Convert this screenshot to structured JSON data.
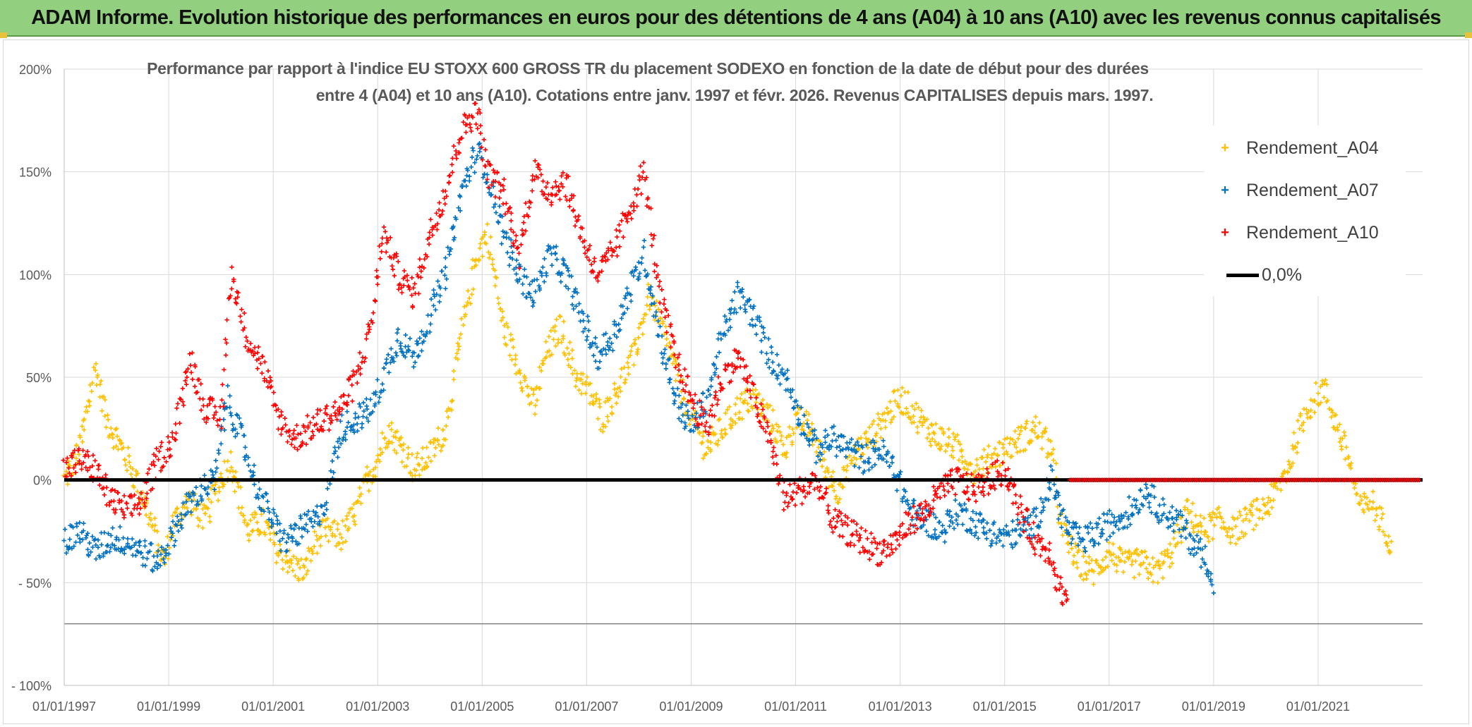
{
  "banner": {
    "title": "ADAM Informe. Evolution historique des performances en euros pour des détentions de 4 ans (A04) à 10 ans (A10) avec les revenus connus capitalisés"
  },
  "chart_data": {
    "type": "scatter",
    "title_line1": "Performance par rapport à l'indice EU STOXX 600 GROSS TR  du placement SODEXO en fonction de la date de début pour des durées",
    "title_line2": "entre 4 (A04) et 10 ans (A10). Cotations entre janv. 1997 et févr. 2026. Revenus CAPITALISES depuis mars. 1997.",
    "xlabel": "",
    "ylabel": "",
    "x_range": [
      1997.0,
      2023.0
    ],
    "ylim": [
      -100,
      200
    ],
    "grid": true,
    "legend_position": "top-right",
    "y_ticks": [
      {
        "value": 200,
        "label": "200%"
      },
      {
        "value": 150,
        "label": "150%"
      },
      {
        "value": 100,
        "label": "100%"
      },
      {
        "value": 50,
        "label": "50%"
      },
      {
        "value": 0,
        "label": "0%"
      },
      {
        "value": -50,
        "label": "- 50%"
      },
      {
        "value": -100,
        "label": "- 100%"
      }
    ],
    "x_ticks": [
      {
        "value": 1997,
        "label": "01/01/1997"
      },
      {
        "value": 1999,
        "label": "01/01/1999"
      },
      {
        "value": 2001,
        "label": "01/01/2001"
      },
      {
        "value": 2003,
        "label": "01/01/2003"
      },
      {
        "value": 2005,
        "label": "01/01/2005"
      },
      {
        "value": 2007,
        "label": "01/01/2007"
      },
      {
        "value": 2009,
        "label": "01/01/2009"
      },
      {
        "value": 2011,
        "label": "01/01/2011"
      },
      {
        "value": 2013,
        "label": "01/01/2013"
      },
      {
        "value": 2015,
        "label": "01/01/2015"
      },
      {
        "value": 2017,
        "label": "01/01/2017"
      },
      {
        "value": 2019,
        "label": "01/01/2019"
      },
      {
        "value": 2021,
        "label": "01/01/2021"
      }
    ],
    "extra_hline": -70,
    "reference_line": {
      "name": "0,0%",
      "value": 0,
      "color": "#000000"
    },
    "series": [
      {
        "name": "Rendement_A04",
        "color": "#ffc000",
        "x": [
          1997.0,
          1997.3,
          1997.6,
          1997.8,
          1998.0,
          1998.3,
          1998.6,
          1998.9,
          1999.1,
          1999.4,
          1999.7,
          1999.9,
          2000.2,
          2000.5,
          2000.8,
          2001.1,
          2001.4,
          2001.6,
          2001.8,
          2002.0,
          2002.3,
          2002.6,
          2002.8,
          2003.0,
          2003.2,
          2003.5,
          2003.7,
          2004.0,
          2004.3,
          2004.6,
          2004.9,
          2005.1,
          2005.4,
          2005.7,
          2006.0,
          2006.2,
          2006.5,
          2006.8,
          2007.0,
          2007.3,
          2007.6,
          2007.9,
          2008.2,
          2008.5,
          2008.8,
          2009.0,
          2009.3,
          2009.6,
          2009.9,
          2010.2,
          2010.5,
          2010.8,
          2011.0,
          2011.3,
          2011.5,
          2011.8,
          2012.0,
          2012.2,
          2012.4,
          2012.7,
          2013.0,
          2013.2,
          2013.5,
          2013.8,
          2014.1,
          2014.4,
          2014.7,
          2015.0,
          2015.3,
          2015.6,
          2015.9,
          2016.1,
          2016.4,
          2016.7,
          2017.0,
          2017.3,
          2017.6,
          2017.9,
          2018.2,
          2018.5,
          2018.8,
          2019.1,
          2019.4,
          2019.6,
          2019.9,
          2020.1,
          2020.4,
          2020.6,
          2020.8,
          2021.1,
          2021.3,
          2021.6,
          2021.8,
          2022.0,
          2022.2,
          2022.4
        ],
        "y": [
          0,
          15,
          55,
          30,
          20,
          5,
          -15,
          -40,
          -20,
          -10,
          -20,
          -5,
          10,
          -25,
          -20,
          -35,
          -42,
          -45,
          -30,
          -25,
          -28,
          -15,
          0,
          10,
          25,
          15,
          5,
          12,
          25,
          70,
          110,
          120,
          75,
          55,
          35,
          60,
          75,
          50,
          45,
          30,
          45,
          60,
          90,
          70,
          45,
          30,
          15,
          25,
          35,
          40,
          30,
          15,
          30,
          25,
          10,
          -5,
          5,
          15,
          20,
          30,
          40,
          35,
          25,
          20,
          15,
          5,
          10,
          15,
          20,
          25,
          15,
          -25,
          -40,
          -45,
          -35,
          -42,
          -40,
          -45,
          -35,
          -15,
          -25,
          -20,
          -25,
          -20,
          -15,
          -10,
          5,
          20,
          35,
          45,
          30,
          10,
          -15,
          -10,
          -20,
          -30
        ]
      },
      {
        "name": "Rendement_A07",
        "color": "#0070c0",
        "x": [
          1997.0,
          1997.3,
          1997.6,
          1997.9,
          1998.2,
          1998.5,
          1998.8,
          1999.0,
          1999.3,
          1999.6,
          1999.9,
          2000.1,
          2000.4,
          2000.7,
          2001.0,
          2001.2,
          2001.5,
          2001.8,
          2002.0,
          2002.3,
          2002.6,
          2002.9,
          2003.1,
          2003.4,
          2003.7,
          2004.0,
          2004.3,
          2004.6,
          2004.9,
          2005.1,
          2005.4,
          2005.7,
          2006.0,
          2006.3,
          2006.6,
          2006.9,
          2007.2,
          2007.5,
          2007.8,
          2008.1,
          2008.4,
          2008.7,
          2009.0,
          2009.3,
          2009.6,
          2009.9,
          2010.2,
          2010.5,
          2010.8,
          2011.1,
          2011.4,
          2011.7,
          2012.0,
          2012.3,
          2012.6,
          2012.9,
          2013.2,
          2013.5,
          2013.8,
          2014.1,
          2014.4,
          2014.7,
          2015.0,
          2015.3,
          2015.6,
          2015.9,
          2016.2,
          2016.5,
          2016.8,
          2017.1,
          2017.4,
          2017.7,
          2018.0,
          2018.3,
          2018.6,
          2018.9,
          2019.0
        ],
        "y": [
          -30,
          -25,
          -35,
          -28,
          -30,
          -35,
          -40,
          -30,
          -15,
          -5,
          0,
          40,
          20,
          -5,
          -20,
          -30,
          -25,
          -20,
          -10,
          25,
          30,
          35,
          50,
          70,
          60,
          80,
          100,
          140,
          160,
          150,
          120,
          100,
          90,
          110,
          100,
          80,
          60,
          70,
          90,
          110,
          70,
          40,
          25,
          40,
          70,
          90,
          80,
          60,
          50,
          30,
          15,
          20,
          15,
          10,
          15,
          5,
          -15,
          -20,
          -25,
          -15,
          -20,
          -25,
          -28,
          -25,
          -20,
          0,
          -25,
          -30,
          -25,
          -20,
          -15,
          -5,
          -15,
          -20,
          -30,
          -40,
          -55
        ]
      },
      {
        "name": "Rendement_A10",
        "color": "#ff0000",
        "x": [
          1997.0,
          1997.3,
          1997.6,
          1997.9,
          1998.2,
          1998.5,
          1998.8,
          1999.1,
          1999.4,
          1999.7,
          2000.0,
          2000.2,
          2000.5,
          2000.8,
          2001.1,
          2001.4,
          2001.7,
          2002.0,
          2002.3,
          2002.6,
          2002.9,
          2003.1,
          2003.4,
          2003.7,
          2004.0,
          2004.3,
          2004.6,
          2004.9,
          2005.1,
          2005.4,
          2005.7,
          2006.0,
          2006.3,
          2006.6,
          2006.9,
          2007.2,
          2007.5,
          2007.8,
          2008.1,
          2008.4,
          2008.7,
          2009.0,
          2009.3,
          2009.6,
          2009.9,
          2010.2,
          2010.5,
          2010.8,
          2011.1,
          2011.4,
          2011.7,
          2012.0,
          2012.3,
          2012.6,
          2012.9,
          2013.2,
          2013.5,
          2013.8,
          2014.1,
          2014.4,
          2014.7,
          2015.0,
          2015.3,
          2015.6,
          2015.9,
          2016.0,
          2016.2
        ],
        "y": [
          5,
          10,
          5,
          -10,
          -15,
          -10,
          10,
          20,
          60,
          35,
          30,
          100,
          70,
          55,
          30,
          20,
          25,
          30,
          35,
          50,
          80,
          120,
          100,
          90,
          120,
          140,
          170,
          180,
          150,
          140,
          110,
          150,
          140,
          145,
          120,
          100,
          110,
          130,
          150,
          90,
          60,
          40,
          25,
          50,
          60,
          40,
          20,
          -10,
          -5,
          0,
          -20,
          -25,
          -30,
          -35,
          -30,
          -20,
          -15,
          -5,
          0,
          -5,
          0,
          5,
          -15,
          -30,
          -35,
          -50,
          -58
        ]
      }
    ],
    "zero_phase": {
      "series": "Rendement_A10",
      "x_start": 2016.25,
      "x_end": 2022.95,
      "value": 0
    }
  }
}
